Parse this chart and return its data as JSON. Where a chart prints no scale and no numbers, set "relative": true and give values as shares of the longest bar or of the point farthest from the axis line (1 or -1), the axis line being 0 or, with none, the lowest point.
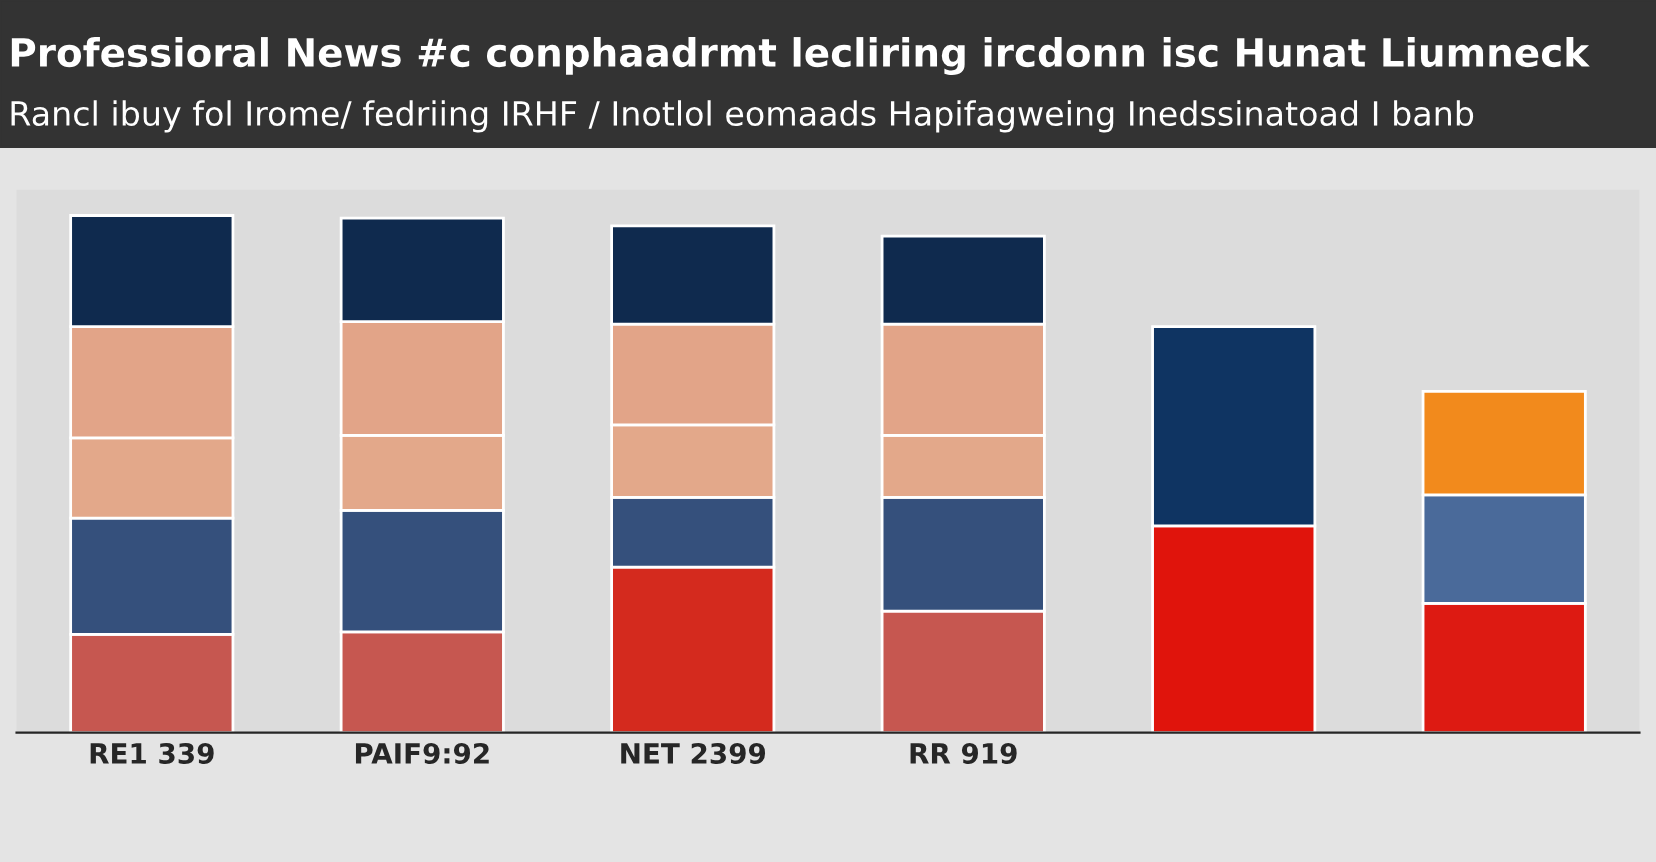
{
  "chart_data": {
    "type": "bar",
    "stacked": true,
    "relative": true,
    "title": "Professioral News #c conphaadrmt lecliring ircdonn isc Hunat Liumneck",
    "subtitle": "Rancl ibuy fol Irome/ fedriing IRHF / Inotlol eomaads Hapifagweing Inedssinatoad I banb",
    "categories": [
      "RE1 339",
      "PAIF9:92",
      "NET 2399",
      "RR 919",
      null,
      null
    ],
    "series": [
      {
        "colors": [
          "#c65750",
          "#c65750",
          "#d42a1e",
          "#c65750",
          "#e0140c",
          "#dd1a12"
        ],
        "values": [
          0.19,
          0.195,
          0.32,
          0.235,
          0.4,
          0.25
        ]
      },
      {
        "colors": [
          "#35507c",
          "#35507c",
          "#35507c",
          "#35507c",
          "#0f3462",
          "#4a6a9a"
        ],
        "values": [
          0.225,
          0.235,
          0.135,
          0.22,
          0.385,
          0.21
        ]
      },
      {
        "color": "#e3a88a",
        "values": [
          0.155,
          0.145,
          0.14,
          0.12,
          null,
          null
        ]
      },
      {
        "color": "#e2a488",
        "values": [
          0.215,
          0.22,
          0.195,
          0.215,
          null,
          null
        ]
      },
      {
        "colors": [
          "#0f2a4e",
          "#0f2a4e",
          "#0f2a4e",
          "#0f2a4e",
          "#0f2a4e",
          "#f28a1c"
        ],
        "values": [
          0.215,
          0.2,
          0.19,
          0.17,
          null,
          0.2
        ]
      }
    ],
    "grid": false,
    "legend": false
  }
}
